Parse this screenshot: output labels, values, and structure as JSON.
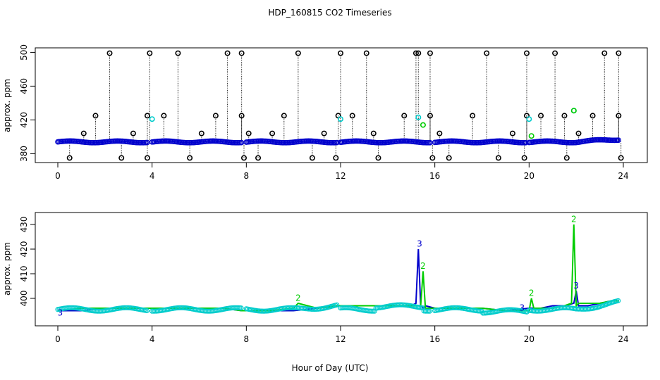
{
  "title": "HDP_160815  CO2 Timeseries",
  "xlabel": "Hour of Day (UTC)",
  "colors": {
    "black": "#000000",
    "blue": "#0000cc",
    "green": "#00cc00",
    "cyan": "#00cccc"
  },
  "chart_data": [
    {
      "type": "scatter",
      "ylabel": "approx. ppm",
      "xlim": [
        0,
        24
      ],
      "ylim": [
        372,
        502
      ],
      "xticks": [
        "0",
        "4",
        "8",
        "12",
        "16",
        "20",
        "24"
      ],
      "yticks": [
        "380",
        "420",
        "460",
        "500"
      ],
      "baseline_level": 394,
      "series": [
        {
          "name": "pegged high readings (black circles)",
          "color": "black",
          "x": [
            2.2,
            3.9,
            5.1,
            7.2,
            7.8,
            10.2,
            12.0,
            13.1,
            15.2,
            15.3,
            15.8,
            18.2,
            19.9,
            21.1,
            23.2,
            23.8
          ],
          "y": [
            499,
            499,
            499,
            499,
            499,
            499,
            499,
            499,
            499,
            499,
            499,
            499,
            499,
            499,
            499,
            499
          ]
        },
        {
          "name": "mid readings (black circles)",
          "color": "black",
          "x": [
            1.6,
            3.8,
            4.5,
            6.7,
            7.8,
            9.6,
            11.9,
            12.5,
            14.7,
            15.8,
            17.6,
            19.9,
            20.5,
            21.5,
            22.7,
            23.8
          ],
          "y": [
            425,
            425,
            425,
            425,
            425,
            425,
            425,
            425,
            425,
            425,
            425,
            425,
            425,
            425,
            425,
            425
          ]
        },
        {
          "name": "low readings (black circles)",
          "color": "black",
          "x": [
            1.1,
            3.2,
            6.1,
            8.1,
            9.1,
            11.3,
            13.4,
            16.2,
            19.3,
            22.1
          ],
          "y": [
            404,
            404,
            404,
            404,
            404,
            404,
            404,
            404,
            404,
            404
          ]
        },
        {
          "name": "floor readings (black circles)",
          "color": "black",
          "x": [
            0.5,
            2.7,
            3.8,
            5.6,
            7.9,
            8.5,
            10.8,
            11.8,
            13.6,
            15.9,
            16.6,
            18.7,
            19.8,
            21.6,
            23.9
          ],
          "y": [
            375,
            375,
            375,
            375,
            375,
            375,
            375,
            375,
            375,
            375,
            375,
            375,
            375,
            375,
            375
          ]
        },
        {
          "name": "cyan markers",
          "color": "cyan",
          "x": [
            4.0,
            12.0,
            15.3,
            20.0,
            21.9
          ],
          "y": [
            421,
            421,
            423,
            421,
            431
          ]
        },
        {
          "name": "green markers",
          "color": "green",
          "x": [
            15.5,
            20.1,
            21.9
          ],
          "y": [
            414,
            401,
            431
          ]
        }
      ]
    },
    {
      "type": "line",
      "ylabel": "approx. ppm",
      "xlim": [
        0,
        24
      ],
      "ylim": [
        392,
        432
      ],
      "xticks": [
        "0",
        "4",
        "8",
        "12",
        "16",
        "20",
        "24"
      ],
      "yticks": [
        "400",
        "410",
        "420",
        "430"
      ],
      "marker_label_blue": "3",
      "marker_label_green": "2",
      "series": [
        {
          "name": "sensor 3",
          "color": "blue",
          "x": [
            0.0,
            1.0,
            2.0,
            3.0,
            3.8,
            4.0,
            5.0,
            6.0,
            7.0,
            7.8,
            8.0,
            9.0,
            10.0,
            11.0,
            11.9,
            12.0,
            13.0,
            14.0,
            15.0,
            15.2,
            15.3,
            15.4,
            15.5,
            15.6,
            16.0,
            17.0,
            18.0,
            19.0,
            20.0,
            20.5,
            21.0,
            21.5,
            21.9,
            22.0,
            22.1,
            22.5,
            23.0,
            23.5,
            23.8
          ],
          "y": [
            395,
            395,
            396,
            396,
            396,
            396,
            396,
            396,
            396,
            395,
            395,
            395,
            395,
            396,
            397,
            397,
            397,
            397,
            397,
            398,
            420,
            397,
            396,
            397,
            396,
            396,
            396,
            395,
            396,
            396,
            397,
            397,
            398,
            403,
            397,
            397,
            398,
            399,
            399
          ]
        },
        {
          "name": "sensor 2",
          "color": "green",
          "x": [
            0.0,
            1.0,
            2.0,
            3.0,
            3.8,
            4.0,
            5.0,
            6.0,
            7.0,
            7.8,
            8.0,
            9.0,
            10.0,
            10.2,
            11.0,
            11.9,
            12.0,
            13.0,
            14.0,
            15.0,
            15.4,
            15.5,
            15.6,
            16.0,
            17.0,
            18.0,
            19.0,
            20.0,
            20.1,
            20.2,
            20.5,
            21.0,
            21.5,
            21.8,
            21.9,
            22.0,
            22.1,
            22.5,
            23.0,
            23.5,
            23.8
          ],
          "y": [
            395,
            396,
            396,
            396,
            396,
            396,
            396,
            396,
            396,
            395,
            395,
            395,
            396,
            398,
            396,
            397,
            397,
            397,
            397,
            397,
            397,
            411,
            396,
            396,
            396,
            396,
            395,
            395,
            400,
            396,
            396,
            396,
            397,
            398,
            430,
            397,
            398,
            398,
            398,
            399,
            399
          ]
        }
      ]
    }
  ]
}
